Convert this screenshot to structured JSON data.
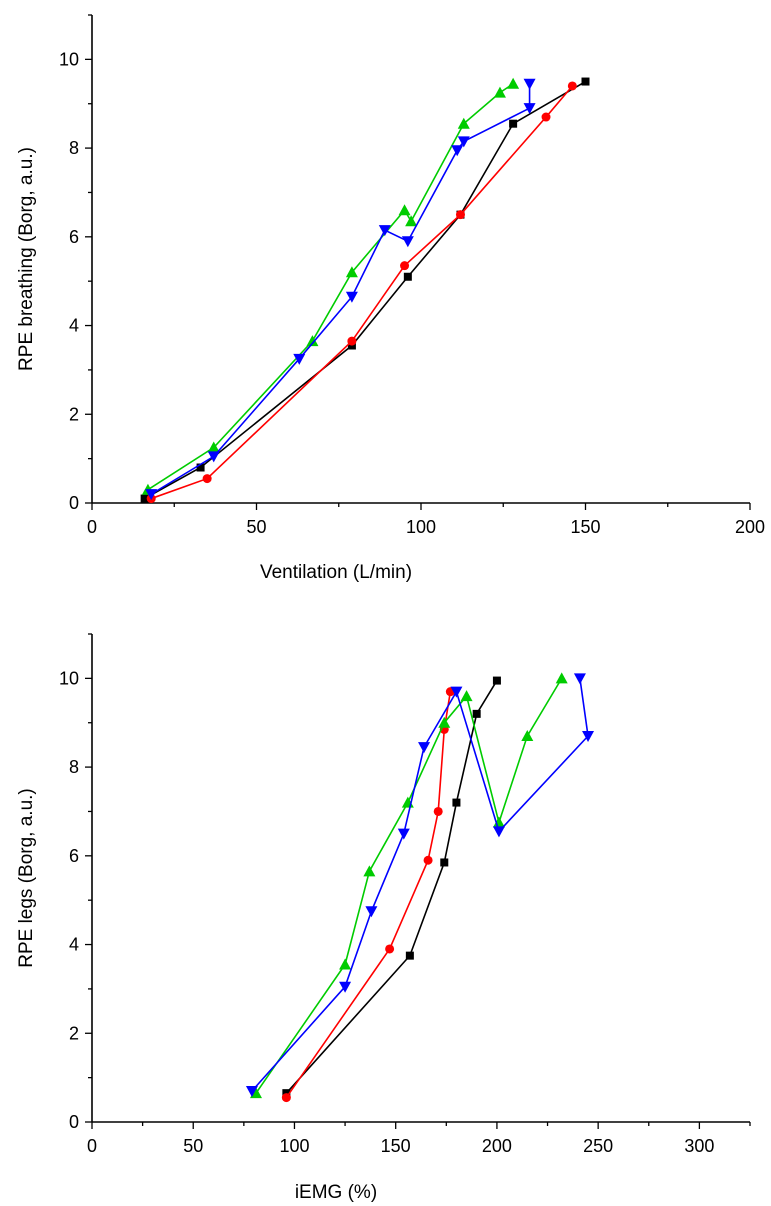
{
  "chart_data": [
    {
      "type": "line",
      "title": "",
      "xlabel": "Ventilation (L/min)",
      "ylabel": "RPE breathing (Borg, a.u.)",
      "xlim": [
        0,
        200
      ],
      "ylim": [
        0,
        11
      ],
      "xticks": [
        "0",
        "50",
        "100",
        "150",
        "200"
      ],
      "yticks": [
        "0",
        "2",
        "4",
        "6",
        "8",
        "10"
      ],
      "grid": false,
      "legend": "none",
      "series": [
        {
          "color": "#000000",
          "marker": "square",
          "points": [
            [
              16,
              0.1
            ],
            [
              33,
              0.8
            ],
            [
              79,
              3.55
            ],
            [
              96,
              5.1
            ],
            [
              112,
              6.5
            ],
            [
              128,
              8.55
            ],
            [
              150,
              9.5
            ]
          ]
        },
        {
          "color": "#ff0000",
          "marker": "circle",
          "points": [
            [
              18,
              0.1
            ],
            [
              35,
              0.55
            ],
            [
              79,
              3.65
            ],
            [
              95,
              5.35
            ],
            [
              112,
              6.5
            ],
            [
              138,
              8.7
            ],
            [
              146,
              9.4
            ]
          ]
        },
        {
          "color": "#00cc00",
          "marker": "triangle-up",
          "points": [
            [
              17,
              0.3
            ],
            [
              37,
              1.25
            ],
            [
              67,
              3.65
            ],
            [
              79,
              5.2
            ],
            [
              95,
              6.6
            ],
            [
              97,
              6.35
            ],
            [
              113,
              8.55
            ],
            [
              124,
              9.25
            ],
            [
              128,
              9.45
            ]
          ]
        },
        {
          "color": "#0000ff",
          "marker": "triangle-down",
          "points": [
            [
              18,
              0.2
            ],
            [
              37,
              1.05
            ],
            [
              63,
              3.25
            ],
            [
              79,
              4.65
            ],
            [
              89,
              6.15
            ],
            [
              96,
              5.9
            ],
            [
              111,
              7.95
            ],
            [
              113,
              8.15
            ],
            [
              133,
              8.9
            ],
            [
              133,
              9.45
            ]
          ]
        }
      ]
    },
    {
      "type": "line",
      "title": "",
      "xlabel": "iEMG (%)",
      "ylabel": "RPE legs (Borg, a.u.)",
      "xlim": [
        0,
        325
      ],
      "ylim": [
        0,
        11
      ],
      "xticks": [
        "0",
        "50",
        "100",
        "150",
        "200",
        "250",
        "300"
      ],
      "yticks": [
        "0",
        "2",
        "4",
        "6",
        "8",
        "10"
      ],
      "grid": false,
      "legend": "none",
      "series": [
        {
          "color": "#000000",
          "marker": "square",
          "points": [
            [
              96,
              0.65
            ],
            [
              157,
              3.75
            ],
            [
              174,
              5.85
            ],
            [
              180,
              7.2
            ],
            [
              190,
              9.2
            ],
            [
              200,
              9.95
            ]
          ]
        },
        {
          "color": "#ff0000",
          "marker": "circle",
          "points": [
            [
              96,
              0.55
            ],
            [
              147,
              3.9
            ],
            [
              166,
              5.9
            ],
            [
              171,
              7.0
            ],
            [
              174,
              8.85
            ],
            [
              177,
              9.7
            ]
          ]
        },
        {
          "color": "#00cc00",
          "marker": "triangle-up",
          "points": [
            [
              81,
              0.65
            ],
            [
              125,
              3.55
            ],
            [
              137,
              5.65
            ],
            [
              156,
              7.2
            ],
            [
              174,
              9.0
            ],
            [
              185,
              9.6
            ],
            [
              201,
              6.75
            ],
            [
              215,
              8.7
            ],
            [
              232,
              10.0
            ]
          ]
        },
        {
          "color": "#0000ff",
          "marker": "triangle-down",
          "points": [
            [
              79,
              0.7
            ],
            [
              125,
              3.05
            ],
            [
              138,
              4.75
            ],
            [
              154,
              6.5
            ],
            [
              164,
              8.45
            ],
            [
              180,
              9.7
            ],
            [
              201,
              6.55
            ],
            [
              245,
              8.7
            ],
            [
              241,
              10.0
            ]
          ]
        }
      ]
    }
  ]
}
